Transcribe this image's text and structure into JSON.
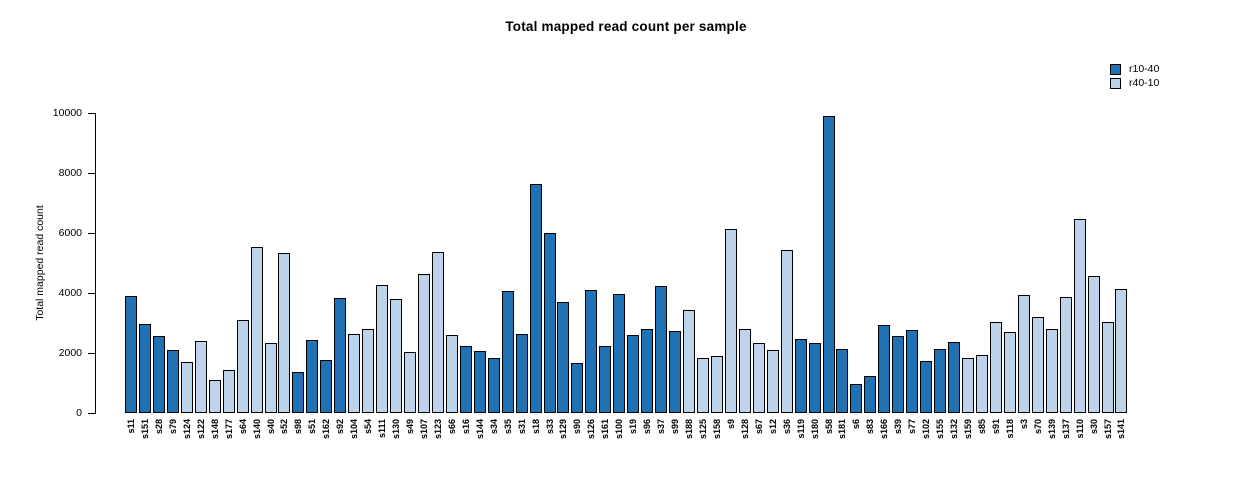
{
  "title": "Total mapped read count per sample",
  "chart_data": {
    "type": "bar",
    "title": "Total mapped read count per sample",
    "xlabel": "",
    "ylabel": "Total mapped read count",
    "ylim": [
      0,
      10000
    ],
    "yticks": [
      0,
      2000,
      4000,
      6000,
      8000,
      10000
    ],
    "grid": false,
    "legend_position": "top-right",
    "series": [
      {
        "name": "r10-40",
        "color": "#2171B5"
      },
      {
        "name": "r40-10",
        "color": "#BDD3EA"
      }
    ],
    "bars": [
      {
        "sample": "s11",
        "value": 3890,
        "series": "r10-40"
      },
      {
        "sample": "s151",
        "value": 2960,
        "series": "r10-40"
      },
      {
        "sample": "s28",
        "value": 2560,
        "series": "r10-40"
      },
      {
        "sample": "s79",
        "value": 2100,
        "series": "r10-40"
      },
      {
        "sample": "s124",
        "value": 1710,
        "series": "r40-10"
      },
      {
        "sample": "s122",
        "value": 2410,
        "series": "r40-10"
      },
      {
        "sample": "s148",
        "value": 1100,
        "series": "r40-10"
      },
      {
        "sample": "s177",
        "value": 1430,
        "series": "r40-10"
      },
      {
        "sample": "s64",
        "value": 3100,
        "series": "r40-10"
      },
      {
        "sample": "s140",
        "value": 5550,
        "series": "r40-10"
      },
      {
        "sample": "s40",
        "value": 2340,
        "series": "r40-10"
      },
      {
        "sample": "s52",
        "value": 5320,
        "series": "r40-10"
      },
      {
        "sample": "s98",
        "value": 1360,
        "series": "r10-40"
      },
      {
        "sample": "s51",
        "value": 2450,
        "series": "r10-40"
      },
      {
        "sample": "s162",
        "value": 1760,
        "series": "r10-40"
      },
      {
        "sample": "s92",
        "value": 3850,
        "series": "r10-40"
      },
      {
        "sample": "s104",
        "value": 2630,
        "series": "r40-10"
      },
      {
        "sample": "s54",
        "value": 2810,
        "series": "r40-10"
      },
      {
        "sample": "s111",
        "value": 4280,
        "series": "r40-10"
      },
      {
        "sample": "s130",
        "value": 3790,
        "series": "r40-10"
      },
      {
        "sample": "s49",
        "value": 2040,
        "series": "r40-10"
      },
      {
        "sample": "s107",
        "value": 4640,
        "series": "r40-10"
      },
      {
        "sample": "s123",
        "value": 5380,
        "series": "r40-10"
      },
      {
        "sample": "s66",
        "value": 2600,
        "series": "r40-10"
      },
      {
        "sample": "s16",
        "value": 2240,
        "series": "r10-40"
      },
      {
        "sample": "s144",
        "value": 2080,
        "series": "r10-40"
      },
      {
        "sample": "s34",
        "value": 1820,
        "series": "r10-40"
      },
      {
        "sample": "s35",
        "value": 4070,
        "series": "r10-40"
      },
      {
        "sample": "s31",
        "value": 2650,
        "series": "r10-40"
      },
      {
        "sample": "s18",
        "value": 7640,
        "series": "r10-40"
      },
      {
        "sample": "s33",
        "value": 6000,
        "series": "r10-40"
      },
      {
        "sample": "s129",
        "value": 3690,
        "series": "r10-40"
      },
      {
        "sample": "s90",
        "value": 1670,
        "series": "r10-40"
      },
      {
        "sample": "s126",
        "value": 4100,
        "series": "r10-40"
      },
      {
        "sample": "s161",
        "value": 2220,
        "series": "r10-40"
      },
      {
        "sample": "s100",
        "value": 3960,
        "series": "r10-40"
      },
      {
        "sample": "s19",
        "value": 2600,
        "series": "r10-40"
      },
      {
        "sample": "s96",
        "value": 2810,
        "series": "r10-40"
      },
      {
        "sample": "s37",
        "value": 4250,
        "series": "r10-40"
      },
      {
        "sample": "s99",
        "value": 2730,
        "series": "r10-40"
      },
      {
        "sample": "s188",
        "value": 3420,
        "series": "r40-10"
      },
      {
        "sample": "s125",
        "value": 1820,
        "series": "r40-10"
      },
      {
        "sample": "s158",
        "value": 1890,
        "series": "r40-10"
      },
      {
        "sample": "s9",
        "value": 6130,
        "series": "r40-10"
      },
      {
        "sample": "s128",
        "value": 2810,
        "series": "r40-10"
      },
      {
        "sample": "s67",
        "value": 2340,
        "series": "r40-10"
      },
      {
        "sample": "s12",
        "value": 2090,
        "series": "r40-10"
      },
      {
        "sample": "s36",
        "value": 5430,
        "series": "r40-10"
      },
      {
        "sample": "s119",
        "value": 2460,
        "series": "r10-40"
      },
      {
        "sample": "s180",
        "value": 2320,
        "series": "r10-40"
      },
      {
        "sample": "s58",
        "value": 9890,
        "series": "r10-40"
      },
      {
        "sample": "s181",
        "value": 2120,
        "series": "r10-40"
      },
      {
        "sample": "s6",
        "value": 970,
        "series": "r10-40"
      },
      {
        "sample": "s83",
        "value": 1250,
        "series": "r10-40"
      },
      {
        "sample": "s166",
        "value": 2930,
        "series": "r10-40"
      },
      {
        "sample": "s39",
        "value": 2570,
        "series": "r10-40"
      },
      {
        "sample": "s77",
        "value": 2760,
        "series": "r10-40"
      },
      {
        "sample": "s102",
        "value": 1720,
        "series": "r10-40"
      },
      {
        "sample": "s155",
        "value": 2150,
        "series": "r10-40"
      },
      {
        "sample": "s132",
        "value": 2380,
        "series": "r10-40"
      },
      {
        "sample": "s159",
        "value": 1820,
        "series": "r40-10"
      },
      {
        "sample": "s85",
        "value": 1930,
        "series": "r40-10"
      },
      {
        "sample": "s91",
        "value": 3030,
        "series": "r40-10"
      },
      {
        "sample": "s118",
        "value": 2690,
        "series": "r40-10"
      },
      {
        "sample": "s3",
        "value": 3920,
        "series": "r40-10"
      },
      {
        "sample": "s70",
        "value": 3210,
        "series": "r40-10"
      },
      {
        "sample": "s139",
        "value": 2800,
        "series": "r40-10"
      },
      {
        "sample": "s137",
        "value": 3870,
        "series": "r40-10"
      },
      {
        "sample": "s110",
        "value": 6470,
        "series": "r40-10"
      },
      {
        "sample": "s30",
        "value": 4570,
        "series": "r40-10"
      },
      {
        "sample": "s157",
        "value": 3030,
        "series": "r40-10"
      },
      {
        "sample": "s141",
        "value": 4130,
        "series": "r40-10"
      }
    ]
  }
}
